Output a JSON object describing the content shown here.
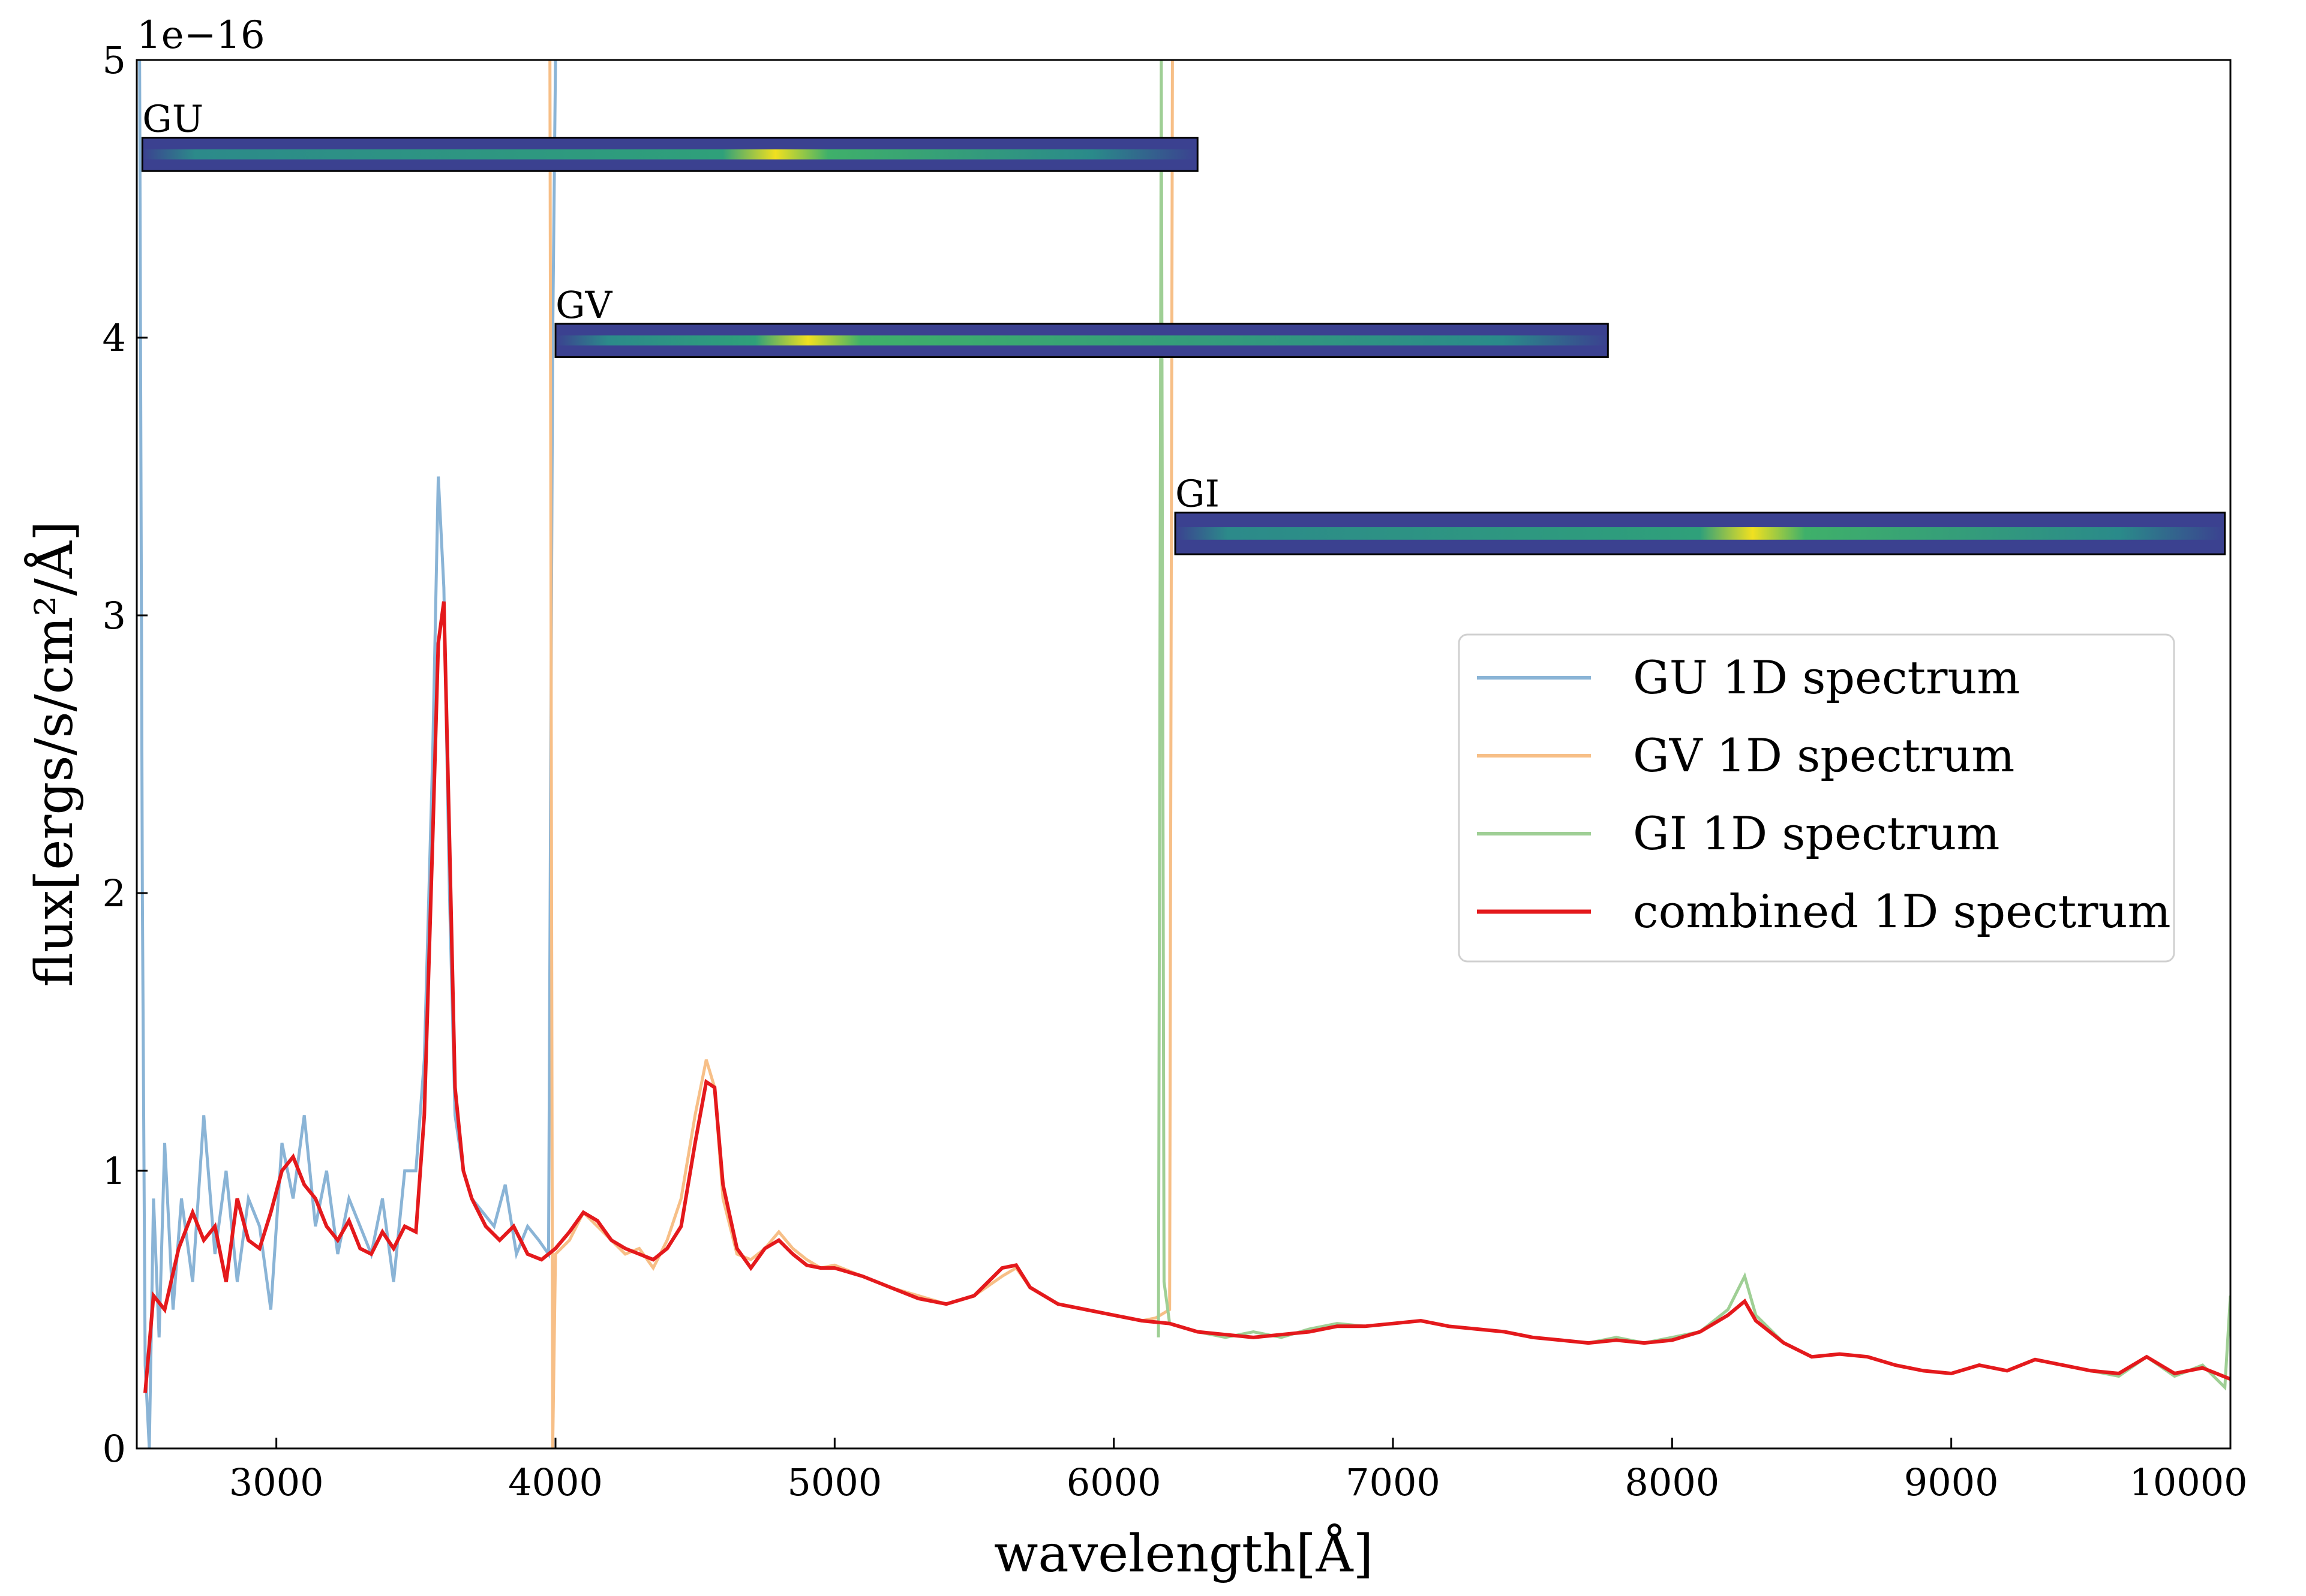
{
  "chart_data": {
    "type": "line",
    "xlabel": "wavelength[Å]",
    "ylabel": "flux[ergs/s/cm²/Å]",
    "y_scale_label": "1e−16",
    "xlim": [
      2500,
      10000
    ],
    "ylim": [
      0,
      5
    ],
    "x_ticks": [
      3000,
      4000,
      5000,
      6000,
      7000,
      8000,
      9000,
      10000
    ],
    "y_ticks": [
      0,
      1,
      2,
      3,
      4,
      5
    ],
    "y_tick_labels": [
      "0",
      "1",
      "2",
      "3",
      "4",
      "5"
    ],
    "legend_position": "right",
    "grid": false,
    "series": [
      {
        "name": "GU 1D spectrum",
        "color": "#8ab4d6",
        "x": [
          2510,
          2520,
          2530,
          2545,
          2560,
          2580,
          2600,
          2630,
          2660,
          2700,
          2740,
          2780,
          2820,
          2860,
          2900,
          2940,
          2980,
          3020,
          3060,
          3100,
          3140,
          3180,
          3220,
          3260,
          3300,
          3340,
          3380,
          3420,
          3460,
          3500,
          3530,
          3560,
          3580,
          3600,
          3620,
          3640,
          3670,
          3700,
          3740,
          3780,
          3820,
          3860,
          3900,
          3940,
          3975,
          3990,
          4000
        ],
        "y": [
          5.0,
          2.0,
          0.3,
          0.0,
          0.9,
          0.4,
          1.1,
          0.5,
          0.9,
          0.6,
          1.2,
          0.7,
          1.0,
          0.6,
          0.9,
          0.8,
          0.5,
          1.1,
          0.9,
          1.2,
          0.8,
          1.0,
          0.7,
          0.9,
          0.8,
          0.7,
          0.9,
          0.6,
          1.0,
          1.0,
          1.4,
          2.5,
          3.5,
          3.1,
          2.0,
          1.2,
          1.0,
          0.9,
          0.85,
          0.8,
          0.95,
          0.7,
          0.8,
          0.75,
          0.7,
          4.0,
          5.0
        ]
      },
      {
        "name": "GV 1D spectrum",
        "color": "#f7bf87",
        "x": [
          3980,
          3990,
          4000,
          4050,
          4100,
          4150,
          4200,
          4250,
          4300,
          4350,
          4400,
          4450,
          4500,
          4540,
          4570,
          4600,
          4650,
          4700,
          4750,
          4800,
          4850,
          4900,
          4950,
          5000,
          5100,
          5200,
          5300,
          5400,
          5500,
          5600,
          5650,
          5700,
          5800,
          5900,
          6000,
          6100,
          6150,
          6200,
          6210
        ],
        "y": [
          5.0,
          0.0,
          0.7,
          0.75,
          0.85,
          0.8,
          0.75,
          0.7,
          0.72,
          0.65,
          0.75,
          0.9,
          1.2,
          1.4,
          1.3,
          0.9,
          0.7,
          0.68,
          0.72,
          0.78,
          0.72,
          0.68,
          0.65,
          0.66,
          0.62,
          0.58,
          0.55,
          0.52,
          0.55,
          0.62,
          0.65,
          0.58,
          0.52,
          0.5,
          0.48,
          0.46,
          0.47,
          0.5,
          5.0
        ]
      },
      {
        "name": "GI 1D spectrum",
        "color": "#9fcf95",
        "x": [
          6160,
          6170,
          6180,
          6200,
          6300,
          6400,
          6500,
          6600,
          6700,
          6800,
          6900,
          7000,
          7100,
          7200,
          7300,
          7400,
          7500,
          7600,
          7700,
          7800,
          7900,
          8000,
          8100,
          8200,
          8260,
          8300,
          8400,
          8500,
          8600,
          8700,
          8800,
          8900,
          9000,
          9100,
          9200,
          9300,
          9400,
          9500,
          9600,
          9700,
          9800,
          9900,
          9980,
          10000
        ],
        "y": [
          0.4,
          5.0,
          0.6,
          0.45,
          0.42,
          0.4,
          0.42,
          0.4,
          0.43,
          0.45,
          0.44,
          0.45,
          0.46,
          0.44,
          0.43,
          0.42,
          0.4,
          0.39,
          0.38,
          0.4,
          0.38,
          0.4,
          0.42,
          0.5,
          0.62,
          0.48,
          0.38,
          0.33,
          0.34,
          0.33,
          0.3,
          0.28,
          0.27,
          0.3,
          0.28,
          0.32,
          0.3,
          0.28,
          0.26,
          0.33,
          0.26,
          0.3,
          0.22,
          0.55
        ]
      },
      {
        "name": "combined 1D spectrum",
        "color": "#e4191c",
        "x": [
          2530,
          2560,
          2600,
          2650,
          2700,
          2740,
          2780,
          2820,
          2860,
          2900,
          2940,
          2980,
          3020,
          3060,
          3100,
          3140,
          3180,
          3220,
          3260,
          3300,
          3340,
          3380,
          3420,
          3460,
          3500,
          3530,
          3560,
          3580,
          3600,
          3620,
          3640,
          3670,
          3700,
          3750,
          3800,
          3850,
          3900,
          3950,
          4000,
          4050,
          4100,
          4150,
          4200,
          4250,
          4300,
          4350,
          4400,
          4450,
          4500,
          4540,
          4570,
          4600,
          4650,
          4700,
          4750,
          4800,
          4850,
          4900,
          4950,
          5000,
          5100,
          5200,
          5300,
          5400,
          5500,
          5600,
          5650,
          5700,
          5800,
          5900,
          6000,
          6100,
          6200,
          6300,
          6400,
          6500,
          6600,
          6700,
          6800,
          6900,
          7000,
          7100,
          7200,
          7300,
          7400,
          7500,
          7600,
          7700,
          7800,
          7900,
          8000,
          8100,
          8200,
          8260,
          8300,
          8400,
          8500,
          8600,
          8700,
          8800,
          8900,
          9000,
          9100,
          9200,
          9300,
          9400,
          9500,
          9600,
          9700,
          9800,
          9900,
          10000
        ],
        "y": [
          0.2,
          0.55,
          0.5,
          0.72,
          0.85,
          0.75,
          0.8,
          0.6,
          0.9,
          0.75,
          0.72,
          0.85,
          1.0,
          1.05,
          0.95,
          0.9,
          0.8,
          0.75,
          0.82,
          0.72,
          0.7,
          0.78,
          0.72,
          0.8,
          0.78,
          1.2,
          2.2,
          2.9,
          3.05,
          2.2,
          1.3,
          1.0,
          0.9,
          0.8,
          0.75,
          0.8,
          0.7,
          0.68,
          0.72,
          0.78,
          0.85,
          0.82,
          0.75,
          0.72,
          0.7,
          0.68,
          0.72,
          0.8,
          1.1,
          1.32,
          1.3,
          0.95,
          0.72,
          0.65,
          0.72,
          0.75,
          0.7,
          0.66,
          0.65,
          0.65,
          0.62,
          0.58,
          0.54,
          0.52,
          0.55,
          0.65,
          0.66,
          0.58,
          0.52,
          0.5,
          0.48,
          0.46,
          0.45,
          0.42,
          0.41,
          0.4,
          0.41,
          0.42,
          0.44,
          0.44,
          0.45,
          0.46,
          0.44,
          0.43,
          0.42,
          0.4,
          0.39,
          0.38,
          0.39,
          0.38,
          0.39,
          0.42,
          0.48,
          0.53,
          0.46,
          0.38,
          0.33,
          0.34,
          0.33,
          0.3,
          0.28,
          0.27,
          0.3,
          0.28,
          0.32,
          0.3,
          0.28,
          0.27,
          0.33,
          0.27,
          0.29,
          0.25
        ]
      }
    ]
  },
  "strips": [
    {
      "label": "GU",
      "x_start": 2520,
      "x_end": 6300,
      "y_top": 4.72,
      "y_bottom": 4.6,
      "peak_at": 0.6
    },
    {
      "label": "GV",
      "x_start": 4000,
      "x_end": 7770,
      "y_top": 4.05,
      "y_bottom": 3.93,
      "peak_at": 0.24
    },
    {
      "label": "GI",
      "x_start": 6220,
      "x_end": 9980,
      "y_top": 3.37,
      "y_bottom": 3.22,
      "peak_at": 0.55
    }
  ]
}
